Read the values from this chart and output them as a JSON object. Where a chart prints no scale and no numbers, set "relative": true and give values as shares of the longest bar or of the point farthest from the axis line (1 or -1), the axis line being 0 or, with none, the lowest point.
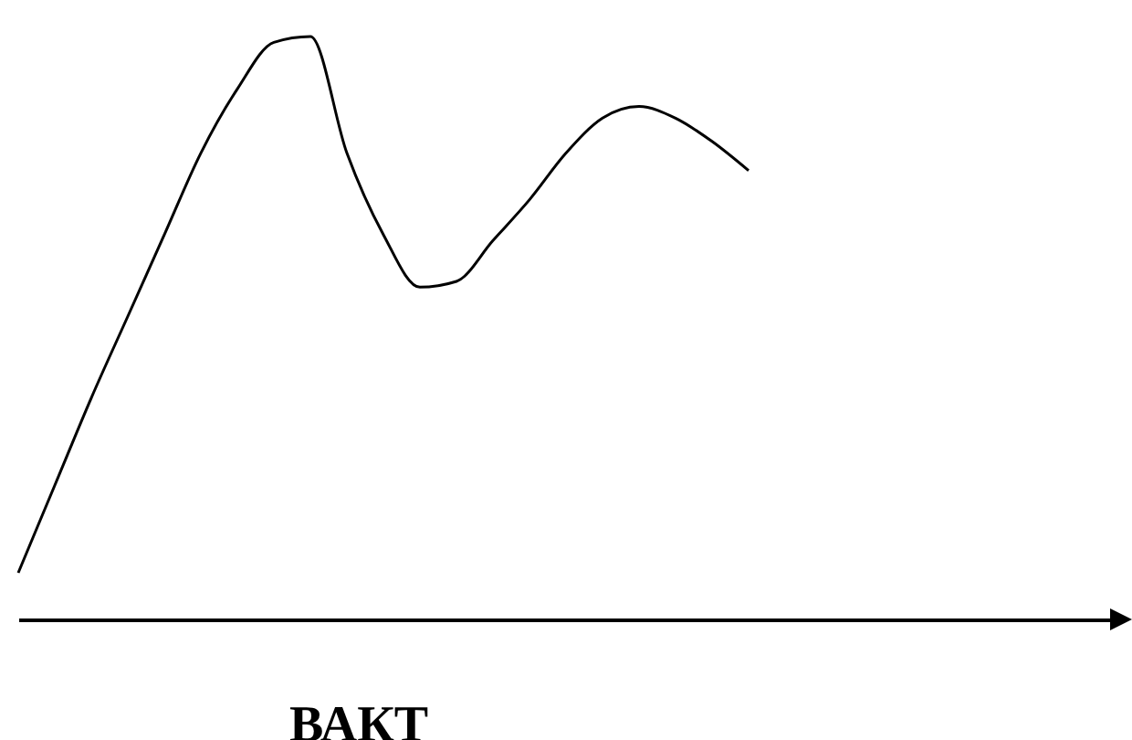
{
  "chart_data": {
    "type": "line",
    "relative": true,
    "xlabel": "ВАКТ",
    "categories": [
      null,
      null,
      null,
      null,
      null,
      null,
      null,
      null,
      null,
      null,
      null,
      null,
      null,
      null,
      null,
      null,
      null,
      null,
      null,
      null,
      null,
      null,
      null,
      null,
      null,
      null,
      null,
      null,
      null,
      null,
      null
    ],
    "series": [
      {
        "color": "#000000",
        "values": [
          0.08,
          0.23,
          0.38,
          0.52,
          0.66,
          0.8,
          0.91,
          0.99,
          1,
          0.8,
          0.66,
          0.57,
          0.58,
          0.65,
          0.72,
          0.8,
          0.86,
          0.88,
          0.86,
          0.82,
          0.77,
          null,
          null,
          null,
          null,
          null,
          null,
          null,
          null,
          null,
          null
        ]
      }
    ]
  }
}
